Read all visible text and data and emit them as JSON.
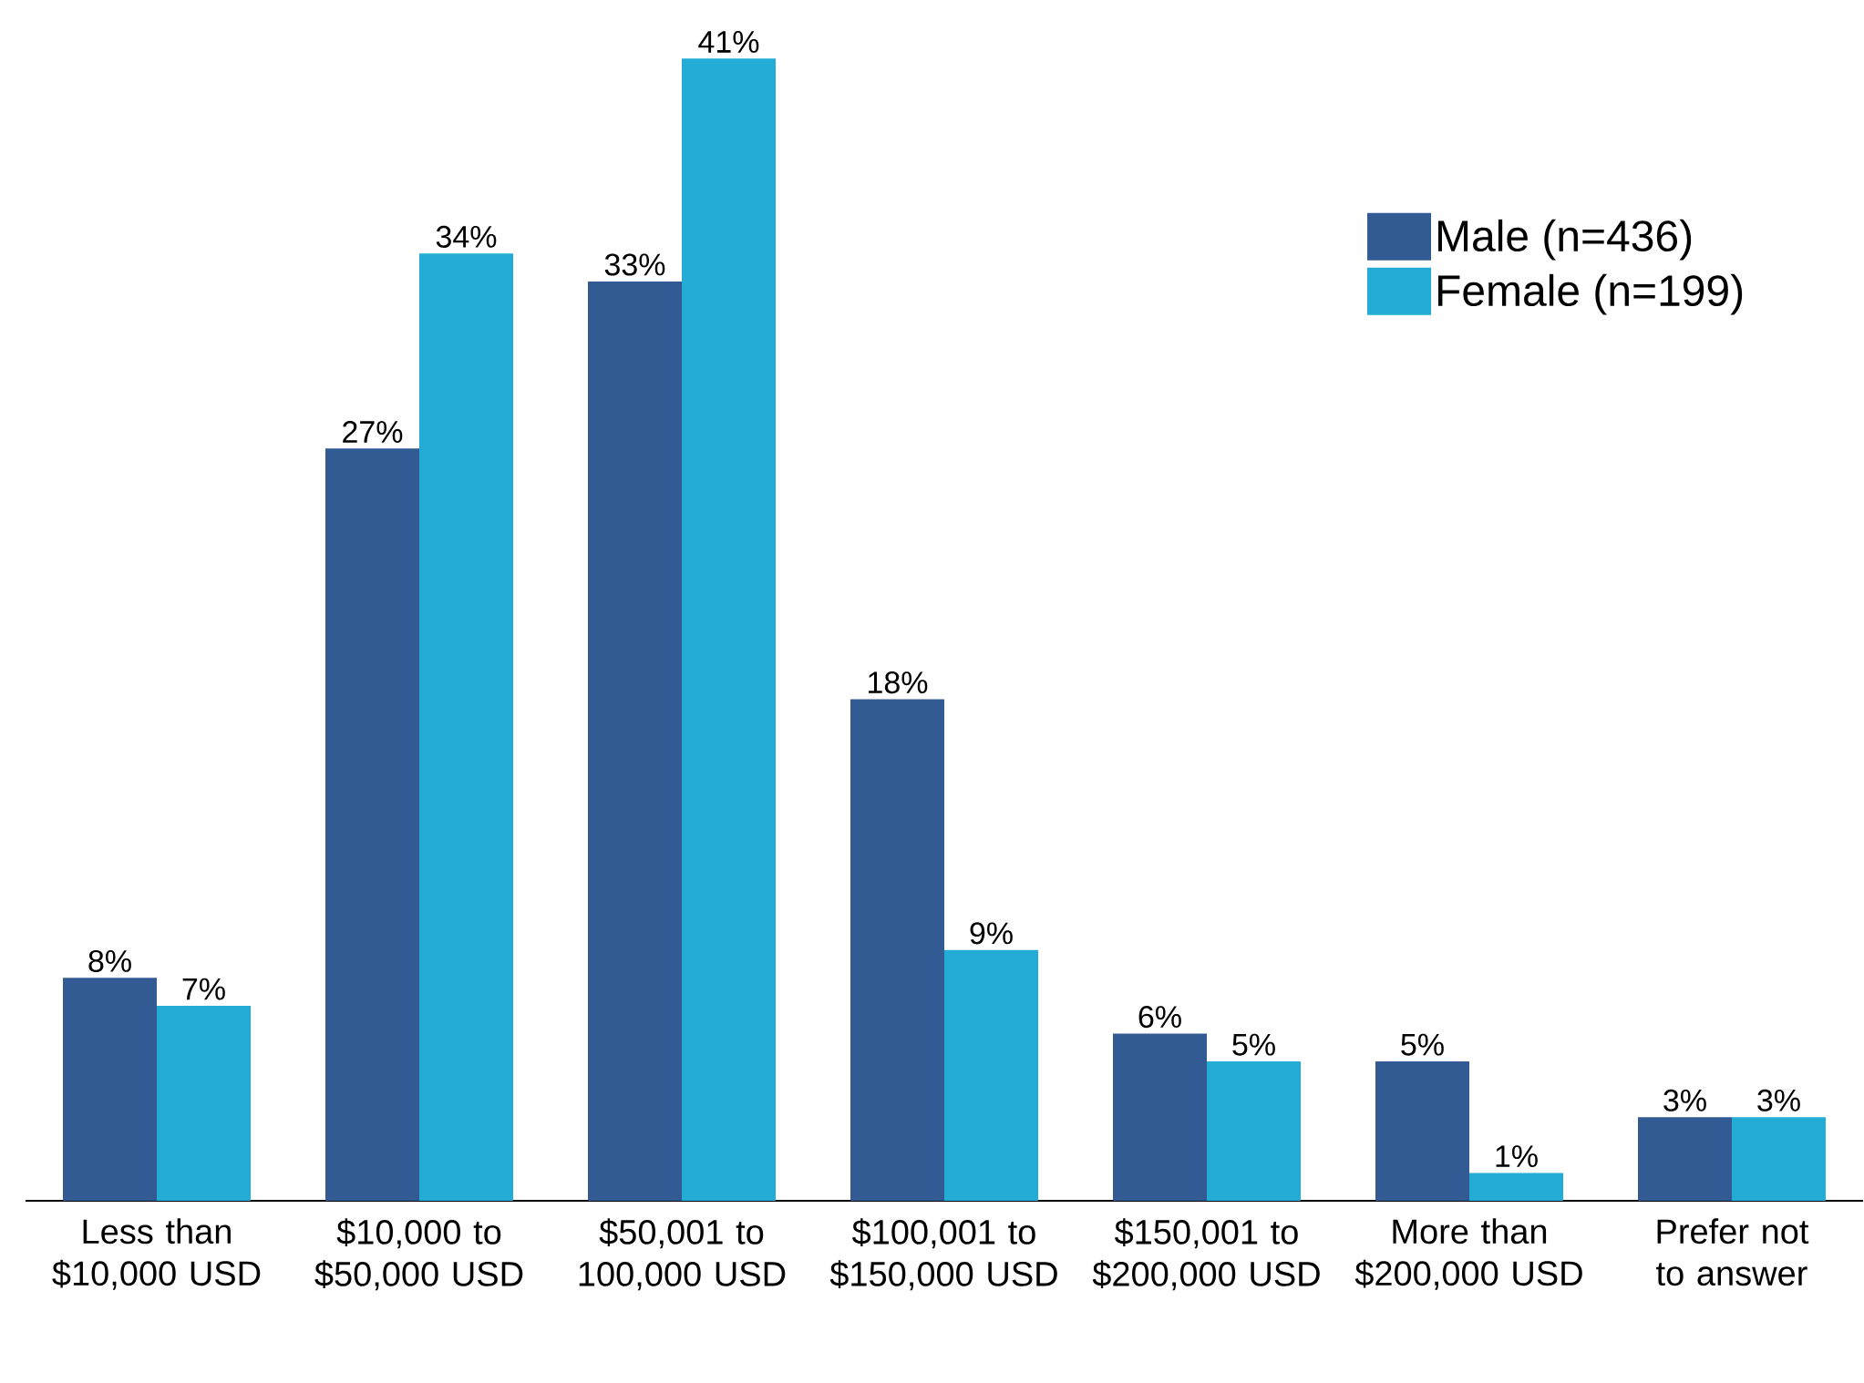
{
  "chart_data": {
    "type": "bar",
    "categories": [
      "Less than $10,000 USD",
      "$10,000 to $50,000 USD",
      "$50,001 to 100,000 USD",
      "$100,001 to $150,000 USD",
      "$150,001 to $200,000 USD",
      "More than $200,000 USD",
      "Prefer not to answer"
    ],
    "series": [
      {
        "name": "Male (n=436)",
        "color": "#325a93",
        "values": [
          8,
          27,
          33,
          18,
          6,
          5,
          3
        ],
        "value_labels": [
          "8%",
          "27%",
          "33%",
          "18%",
          "6%",
          "5%",
          "3%"
        ]
      },
      {
        "name": "Female (n=199)",
        "color": "#22acd6",
        "values": [
          7,
          34,
          41,
          9,
          5,
          1,
          3
        ],
        "value_labels": [
          "7%",
          "34%",
          "41%",
          "9%",
          "5%",
          "1%",
          "3%"
        ]
      }
    ],
    "legend": "top right"
  }
}
